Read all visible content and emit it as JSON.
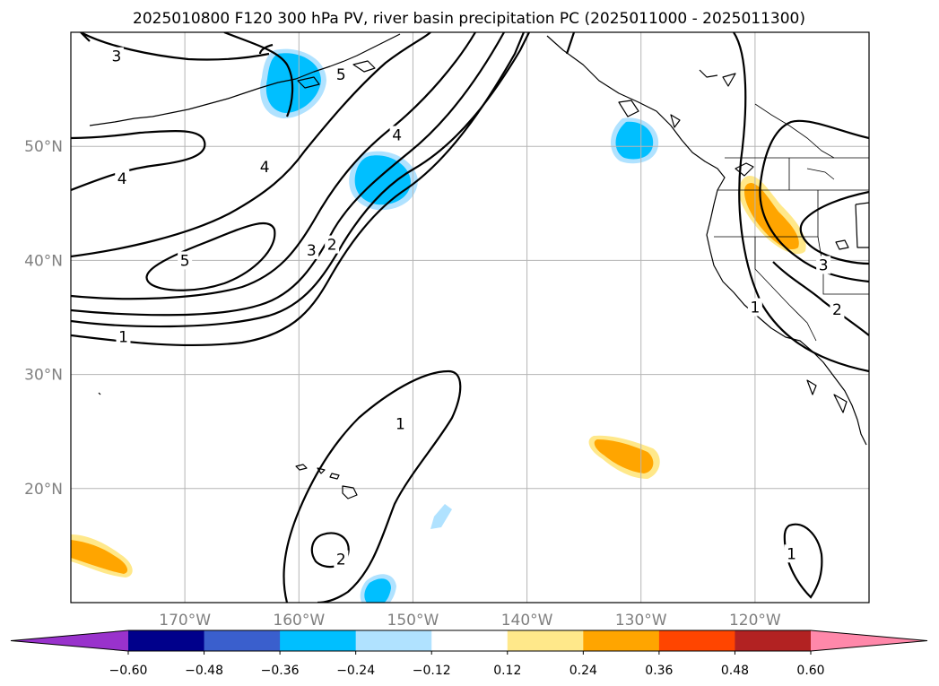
{
  "chart_data": {
    "type": "heatmap",
    "title": "2025010800 F120 300 hPa PV, river basin precipitation PC (2025011000 - 2025011300)",
    "lon_range": [
      -180,
      -110
    ],
    "lat_range": [
      10,
      60
    ],
    "x_ticks": [
      {
        "lon": -170,
        "label": "170°W"
      },
      {
        "lon": -160,
        "label": "160°W"
      },
      {
        "lon": -150,
        "label": "150°W"
      },
      {
        "lon": -140,
        "label": "140°W"
      },
      {
        "lon": -130,
        "label": "130°W"
      },
      {
        "lon": -120,
        "label": "120°W"
      }
    ],
    "y_ticks": [
      {
        "lat": 20,
        "label": "20°N"
      },
      {
        "lat": 30,
        "label": "30°N"
      },
      {
        "lat": 40,
        "label": "40°N"
      },
      {
        "lat": 50,
        "label": "50°N"
      }
    ],
    "grid": true,
    "colorbar": {
      "orientation": "horizontal",
      "placement": "bottom",
      "extend": "both",
      "levels": [
        -0.6,
        -0.48,
        -0.36,
        -0.24,
        -0.12,
        0.12,
        0.24,
        0.36,
        0.48,
        0.6
      ],
      "tick_labels": [
        "−0.60",
        "−0.48",
        "−0.36",
        "−0.24",
        "−0.12",
        "0.12",
        "0.24",
        "0.36",
        "0.48",
        "0.60"
      ],
      "colors": [
        "#9932cc",
        "#00008b",
        "#3a5fcd",
        "#00bfff",
        "#b0e2ff",
        "#ffffff",
        "#ffe88a",
        "#ffa500",
        "#ff4500",
        "#b22222",
        "#ff88aa"
      ]
    },
    "pv_contour_labels": [
      {
        "text": "3",
        "lon": -176,
        "lat": 57.9
      },
      {
        "text": "5",
        "lon": -156.3,
        "lat": 56.3
      },
      {
        "text": "4",
        "lon": -175.5,
        "lat": 47.2
      },
      {
        "text": "4",
        "lon": -163,
        "lat": 48.2
      },
      {
        "text": "4",
        "lon": -151.4,
        "lat": 51
      },
      {
        "text": "5",
        "lon": -170,
        "lat": 40
      },
      {
        "text": "3",
        "lon": -158.9,
        "lat": 40.9
      },
      {
        "text": "2",
        "lon": -157.1,
        "lat": 41.4
      },
      {
        "text": "1",
        "lon": -175.4,
        "lat": 33.3
      },
      {
        "text": "1",
        "lon": -151.1,
        "lat": 25.7
      },
      {
        "text": "2",
        "lon": -156.3,
        "lat": 13.8
      },
      {
        "text": "3",
        "lon": -114,
        "lat": 39.6
      },
      {
        "text": "1",
        "lon": -120,
        "lat": 35.9
      },
      {
        "text": "2",
        "lon": -112.8,
        "lat": 35.7
      },
      {
        "text": "1",
        "lon": -116.8,
        "lat": 14.3
      }
    ],
    "precip_pc_features": [
      {
        "sign": "negative",
        "level": "-0.36 to -0.24",
        "center_lon": -159.2,
        "center_lat": 55.3
      },
      {
        "sign": "negative",
        "level": "-0.36 to -0.24",
        "center_lon": -152.7,
        "center_lat": 47.2
      },
      {
        "sign": "negative",
        "level": "-0.36 to -0.24",
        "center_lon": -130.2,
        "center_lat": 50.3
      },
      {
        "sign": "negative",
        "level": "-0.36 to -0.24",
        "center_lon": -153,
        "center_lat": 11.3
      },
      {
        "sign": "negative",
        "level": "-0.24 to -0.12",
        "center_lon": -147.4,
        "center_lat": 17.7
      },
      {
        "sign": "positive",
        "level": "0.24 to 0.36",
        "center_lon": -119.2,
        "center_lat": 43.4
      },
      {
        "sign": "positive",
        "level": "0.24 to 0.36",
        "center_lon": -133.6,
        "center_lat": 22.7
      },
      {
        "sign": "positive",
        "level": "0.24 to 0.36",
        "center_lon": -177.1,
        "center_lat": 13.8
      }
    ]
  }
}
